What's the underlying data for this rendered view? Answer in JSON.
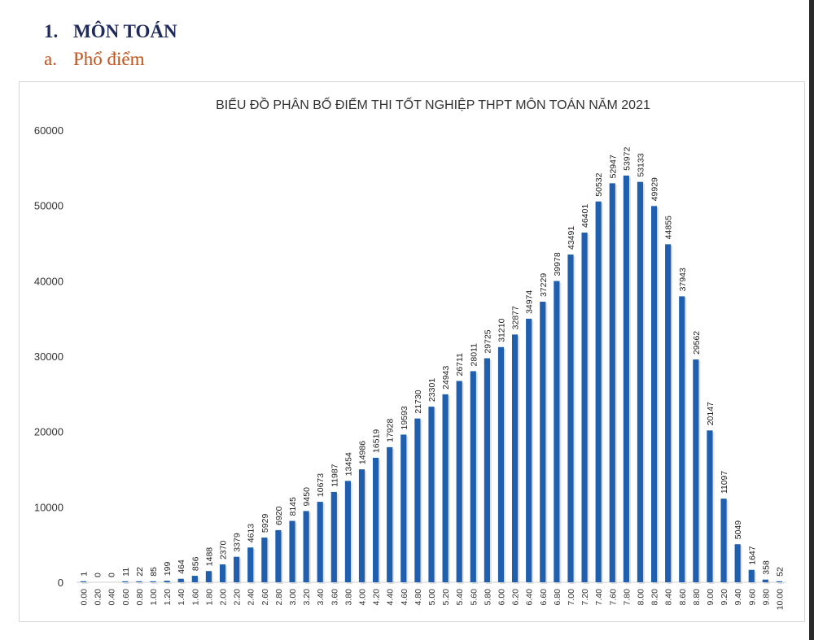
{
  "section": {
    "number": "1.",
    "title": "MÔN TOÁN"
  },
  "subsection": {
    "letter": "a.",
    "title": "Phổ điểm"
  },
  "colors": {
    "bar": "#1f5fae",
    "heading": "#1f2a5c",
    "subheading": "#c0521c"
  },
  "chart_data": {
    "type": "bar",
    "title": "BIỂU ĐỒ PHÂN BỐ ĐIỂM THI TỐT NGHIỆP THPT MÔN TOÁN NĂM 2021",
    "xlabel": "",
    "ylabel": "",
    "ylim": [
      0,
      60000
    ],
    "yticks": [
      "0",
      "10000",
      "20000",
      "30000",
      "40000",
      "50000",
      "60000"
    ],
    "grid": false,
    "categories": [
      "0.00",
      "0.20",
      "0.40",
      "0.60",
      "0.80",
      "1.00",
      "1.20",
      "1.40",
      "1.60",
      "1.80",
      "2.00",
      "2.20",
      "2.40",
      "2.60",
      "2.80",
      "3.00",
      "3.20",
      "3.40",
      "3.60",
      "3.80",
      "4.00",
      "4.20",
      "4.40",
      "4.60",
      "4.80",
      "5.00",
      "5.20",
      "5.40",
      "5.60",
      "5.80",
      "6.00",
      "6.20",
      "6.40",
      "6.60",
      "6.80",
      "7.00",
      "7.20",
      "7.40",
      "7.60",
      "7.80",
      "8.00",
      "8.20",
      "8.40",
      "8.60",
      "8.80",
      "9.00",
      "9.20",
      "9.40",
      "9.60",
      "9.80",
      "10.00"
    ],
    "values": [
      1,
      0,
      0,
      11,
      22,
      85,
      199,
      464,
      856,
      1488,
      2370,
      3379,
      4613,
      5929,
      6920,
      8145,
      9450,
      10673,
      11987,
      13454,
      14986,
      16519,
      17928,
      19593,
      21730,
      23301,
      24943,
      26711,
      28011,
      29725,
      31210,
      32877,
      34974,
      37229,
      39978,
      43491,
      46401,
      50532,
      52947,
      53972,
      53133,
      49929,
      44855,
      37943,
      29562,
      20147,
      11097,
      5049,
      1647,
      358,
      52
    ]
  }
}
